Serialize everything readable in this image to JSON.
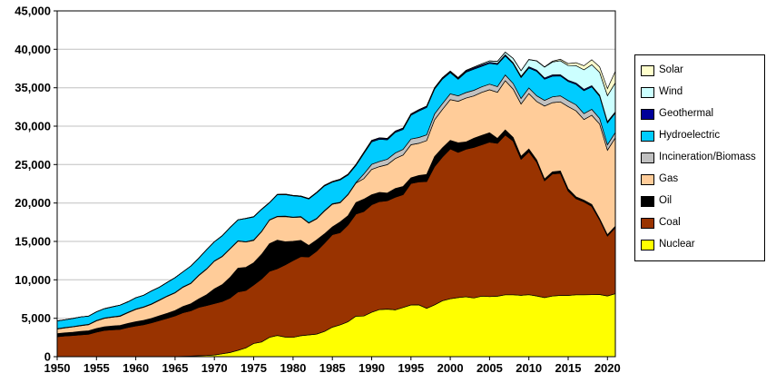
{
  "chart_data": {
    "type": "area",
    "stacked": true,
    "title": "",
    "xlabel": "",
    "ylabel": "",
    "ylim": [
      0,
      45000
    ],
    "grid": "horizontal",
    "legend_position": "right",
    "y_ticks": [
      "0",
      "5,000",
      "10,000",
      "15,000",
      "20,000",
      "25,000",
      "30,000",
      "35,000",
      "40,000",
      "45,000"
    ],
    "x_ticks": [
      "1950",
      "1955",
      "1960",
      "1965",
      "1970",
      "1975",
      "1980",
      "1985",
      "1990",
      "1995",
      "2000",
      "2005",
      "2010",
      "2015",
      "2020"
    ],
    "years": [
      1950,
      1951,
      1952,
      1953,
      1954,
      1955,
      1956,
      1957,
      1958,
      1959,
      1960,
      1961,
      1962,
      1963,
      1964,
      1965,
      1966,
      1967,
      1968,
      1969,
      1970,
      1971,
      1972,
      1973,
      1974,
      1975,
      1976,
      1977,
      1978,
      1979,
      1980,
      1981,
      1982,
      1983,
      1984,
      1985,
      1986,
      1987,
      1988,
      1989,
      1990,
      1991,
      1992,
      1993,
      1994,
      1995,
      1996,
      1997,
      1998,
      1999,
      2000,
      2001,
      2002,
      2003,
      2004,
      2005,
      2006,
      2007,
      2008,
      2009,
      2010,
      2011,
      2012,
      2013,
      2014,
      2015,
      2016,
      2017,
      2018,
      2019,
      2020,
      2021
    ],
    "series": [
      {
        "name": "Nuclear",
        "color": "#FFFF00",
        "values": [
          0,
          0,
          0,
          0,
          0,
          0,
          0,
          0,
          0,
          0,
          0,
          0,
          0,
          0,
          0,
          0,
          50,
          80,
          130,
          150,
          220,
          380,
          540,
          830,
          1140,
          1730,
          1910,
          2510,
          2760,
          2550,
          2510,
          2730,
          2830,
          2940,
          3280,
          3840,
          4140,
          4550,
          5270,
          5290,
          5770,
          6130,
          6190,
          6100,
          6400,
          6730,
          6750,
          6290,
          6740,
          7280,
          7540,
          7690,
          7800,
          7640,
          7880,
          7820,
          7870,
          8060,
          8060,
          7990,
          8070,
          7900,
          7690,
          7890,
          7970,
          7970,
          8060,
          8050,
          8070,
          8090,
          7900,
          8200
        ]
      },
      {
        "name": "Coal",
        "color": "#993300",
        "values": [
          2600,
          2700,
          2760,
          2850,
          2920,
          3200,
          3420,
          3500,
          3560,
          3800,
          4000,
          4160,
          4400,
          4700,
          5000,
          5300,
          5680,
          5900,
          6280,
          6500,
          6700,
          6800,
          7100,
          7600,
          7480,
          7600,
          8200,
          8600,
          8700,
          9400,
          10000,
          10300,
          10150,
          10800,
          11500,
          12050,
          12000,
          12600,
          13300,
          13600,
          14000,
          14050,
          14100,
          14650,
          14700,
          15800,
          16000,
          16500,
          18000,
          18700,
          19500,
          18900,
          19200,
          19600,
          19700,
          20100,
          19900,
          20800,
          20000,
          17700,
          18600,
          17400,
          15200,
          15900,
          15900,
          13600,
          12500,
          12100,
          11500,
          9700,
          7800,
          8600
        ]
      },
      {
        "name": "Oil",
        "color": "#000000",
        "values": [
          400,
          410,
          420,
          440,
          450,
          460,
          470,
          490,
          500,
          520,
          550,
          570,
          590,
          620,
          650,
          700,
          800,
          900,
          1100,
          1400,
          1900,
          2200,
          2700,
          3100,
          3000,
          2900,
          3200,
          3600,
          3700,
          3000,
          2500,
          2100,
          1500,
          1450,
          1200,
          1000,
          1400,
          1200,
          1500,
          1600,
          1300,
          1200,
          1000,
          1130,
          1050,
          750,
          820,
          930,
          1290,
          1180,
          1110,
          1250,
          950,
          1190,
          1210,
          1220,
          640,
          660,
          460,
          390,
          370,
          300,
          230,
          270,
          300,
          280,
          240,
          210,
          250,
          180,
          170,
          190
        ]
      },
      {
        "name": "Gas",
        "color": "#FFCC99",
        "values": [
          600,
          640,
          690,
          740,
          790,
          1000,
          1090,
          1150,
          1200,
          1400,
          1600,
          1700,
          1830,
          2020,
          2200,
          2300,
          2510,
          2650,
          3040,
          3330,
          3600,
          3650,
          3700,
          3500,
          3300,
          2900,
          2950,
          3050,
          3050,
          3290,
          3100,
          3050,
          2900,
          2740,
          2970,
          2950,
          2490,
          2730,
          2530,
          2670,
          3300,
          3350,
          3700,
          3900,
          4100,
          4300,
          4200,
          4400,
          4800,
          5000,
          5300,
          5400,
          5700,
          5500,
          5600,
          5600,
          6000,
          6400,
          6300,
          6800,
          7200,
          7600,
          9500,
          9000,
          9000,
          10700,
          11200,
          10500,
          11600,
          12300,
          11000,
          11500
        ]
      },
      {
        "name": "Incineration/Biomass",
        "color": "#C0C0C0",
        "values": [
          50,
          50,
          50,
          50,
          50,
          50,
          50,
          50,
          50,
          50,
          50,
          50,
          50,
          50,
          50,
          50,
          50,
          50,
          50,
          50,
          50,
          50,
          50,
          50,
          50,
          60,
          60,
          60,
          60,
          60,
          60,
          60,
          60,
          60,
          60,
          60,
          60,
          60,
          60,
          600,
          660,
          680,
          710,
          720,
          730,
          740,
          750,
          750,
          750,
          760,
          760,
          700,
          720,
          730,
          730,
          730,
          730,
          740,
          740,
          720,
          730,
          740,
          740,
          760,
          780,
          780,
          770,
          770,
          770,
          730,
          710,
          700
        ]
      },
      {
        "name": "Hydroelectric",
        "color": "#00CCFF",
        "values": [
          1000,
          1010,
          1050,
          1090,
          1070,
          1130,
          1220,
          1300,
          1400,
          1380,
          1460,
          1520,
          1680,
          1660,
          1770,
          1940,
          1950,
          2220,
          2220,
          2500,
          2480,
          2660,
          2730,
          2720,
          3010,
          3000,
          2840,
          2200,
          2800,
          2800,
          2760,
          2610,
          3090,
          3320,
          3210,
          2810,
          2910,
          2500,
          2230,
          2660,
          2930,
          2890,
          2530,
          2690,
          2600,
          3100,
          3450,
          3560,
          3240,
          3200,
          2760,
          2170,
          2640,
          2760,
          2680,
          2700,
          2890,
          2480,
          2550,
          2730,
          2600,
          3190,
          2760,
          2690,
          2590,
          2490,
          2680,
          3000,
          2920,
          2880,
          2850,
          2520
        ]
      },
      {
        "name": "Geothermal",
        "color": "#000099",
        "values": [
          0,
          0,
          0,
          0,
          0,
          0,
          0,
          0,
          0,
          0,
          0,
          0,
          0,
          0,
          0,
          0,
          0,
          0,
          0,
          0,
          5,
          8,
          10,
          15,
          20,
          30,
          35,
          40,
          45,
          48,
          50,
          55,
          60,
          65,
          80,
          90,
          100,
          110,
          120,
          130,
          155,
          150,
          145,
          145,
          140,
          140,
          140,
          145,
          145,
          145,
          140,
          140,
          145,
          145,
          145,
          145,
          145,
          150,
          150,
          150,
          150,
          155,
          155,
          160,
          160,
          160,
          160,
          160,
          160,
          160,
          160,
          160
        ]
      },
      {
        "name": "Wind",
        "color": "#CCFFFF",
        "values": [
          0,
          0,
          0,
          0,
          0,
          0,
          0,
          0,
          0,
          0,
          0,
          0,
          0,
          0,
          0,
          0,
          0,
          0,
          0,
          0,
          0,
          0,
          0,
          0,
          0,
          0,
          0,
          0,
          0,
          0,
          0,
          0,
          0,
          0,
          0,
          0,
          0,
          0,
          0,
          20,
          30,
          30,
          30,
          30,
          35,
          30,
          35,
          35,
          30,
          45,
          60,
          70,
          100,
          110,
          140,
          180,
          260,
          340,
          550,
          740,
          950,
          1200,
          1400,
          1680,
          1820,
          1910,
          2270,
          2540,
          2730,
          2950,
          3380,
          3780
        ]
      },
      {
        "name": "Solar",
        "color": "#FFFFCC",
        "values": [
          0,
          0,
          0,
          0,
          0,
          0,
          0,
          0,
          0,
          0,
          0,
          0,
          0,
          0,
          0,
          0,
          0,
          0,
          0,
          0,
          0,
          0,
          0,
          0,
          0,
          0,
          0,
          0,
          0,
          0,
          0,
          0,
          0,
          0,
          0,
          0,
          0,
          0,
          0,
          0,
          0,
          0,
          0,
          0,
          0,
          0,
          0,
          0,
          0,
          0,
          0,
          0,
          0,
          0,
          0,
          0,
          0,
          0,
          0,
          0,
          10,
          20,
          40,
          90,
          180,
          250,
          370,
          530,
          640,
          720,
          910,
          1500
        ]
      }
    ]
  }
}
